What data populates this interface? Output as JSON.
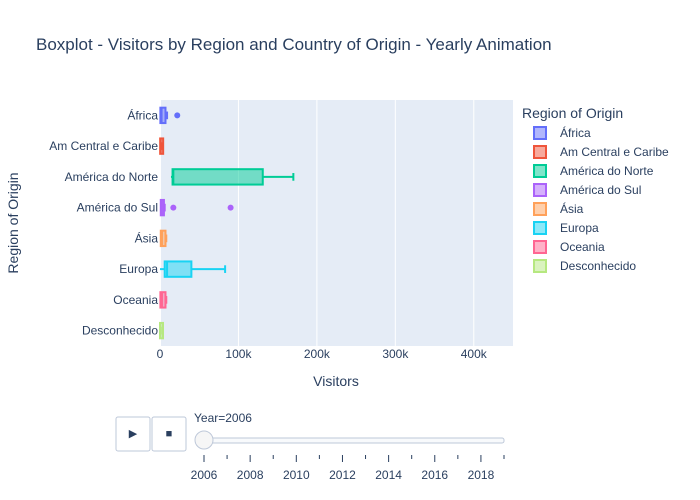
{
  "title": "Boxplot - Visitors by Region and Country of Origin - Yearly Animation",
  "colors": {
    "plot_bg": "#e5ecf6",
    "grid": "#ffffff",
    "text": "#2a3f5f"
  },
  "chart_data": {
    "type": "box",
    "orientation": "horizontal",
    "title": "Boxplot - Visitors by Region and Country of Origin - Yearly Animation",
    "xlabel": "Visitors",
    "ylabel": "Region of Origin",
    "xlim": [
      0,
      450000
    ],
    "xticks": [
      {
        "value": 0,
        "label": "0"
      },
      {
        "value": 100000,
        "label": "100k"
      },
      {
        "value": 200000,
        "label": "200k"
      },
      {
        "value": 300000,
        "label": "300k"
      },
      {
        "value": 400000,
        "label": "400k"
      }
    ],
    "grid": true,
    "legend_title": "Region of Origin",
    "legend_position": "right",
    "series": [
      {
        "name": "África",
        "color": "#636efa",
        "min": 0,
        "q1": 500,
        "median": 2000,
        "q3": 7000,
        "max": 9000,
        "outliers": [
          22000
        ]
      },
      {
        "name": "Am Central e Caribe",
        "color": "#EF553B",
        "min": 0,
        "q1": 200,
        "median": 800,
        "q3": 2500,
        "max": 3000,
        "outliers": []
      },
      {
        "name": "América do Norte",
        "color": "#00cc96",
        "min": 14000,
        "q1": 16000,
        "median": 17000,
        "q3": 131000,
        "max": 170000,
        "outliers": []
      },
      {
        "name": "América do Sul",
        "color": "#ab63fa",
        "min": 0,
        "q1": 1000,
        "median": 2500,
        "q3": 5000,
        "max": 6000,
        "outliers": [
          17000,
          90000
        ]
      },
      {
        "name": "Ásia",
        "color": "#FFA15A",
        "min": 0,
        "q1": 1000,
        "median": 2500,
        "q3": 7000,
        "max": 8000,
        "outliers": []
      },
      {
        "name": "Europa",
        "color": "#19d3f3",
        "min": 0,
        "q1": 6000,
        "median": 9000,
        "q3": 40000,
        "max": 83000,
        "outliers": []
      },
      {
        "name": "Oceania",
        "color": "#FF6692",
        "min": 0,
        "q1": 500,
        "median": 2500,
        "q3": 7000,
        "max": 8000,
        "outliers": []
      },
      {
        "name": "Desconhecido",
        "color": "#B6E880",
        "min": 0,
        "q1": 0,
        "median": 300,
        "q3": 800,
        "max": 1000,
        "outliers": []
      }
    ]
  },
  "controls": {
    "play_icon": "play-icon",
    "stop_icon": "stop-icon",
    "current_value_label": "Year=2006",
    "slider_years": [
      "2006",
      "2008",
      "2010",
      "2012",
      "2014",
      "2016",
      "2018"
    ],
    "slider_value": 2006,
    "slider_range": [
      2006,
      2019
    ]
  }
}
